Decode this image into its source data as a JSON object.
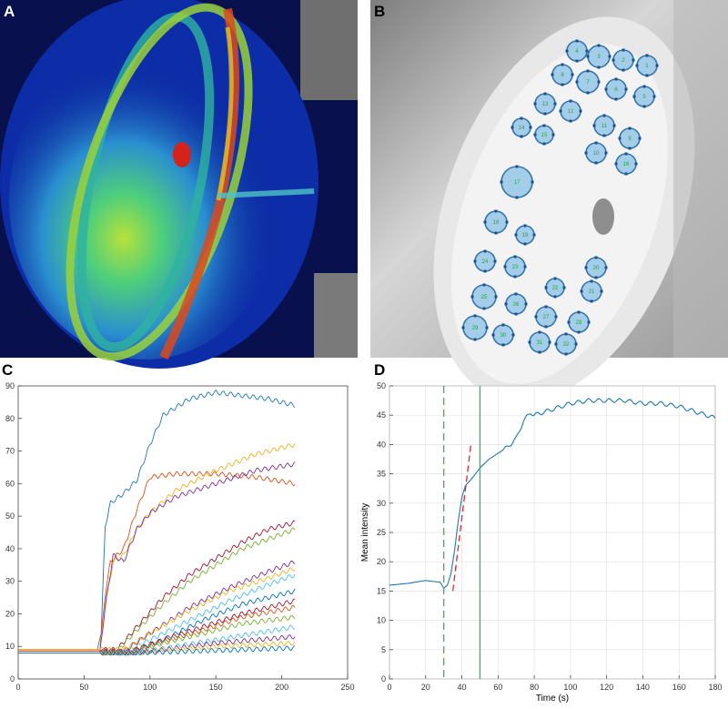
{
  "panels": {
    "a": "A",
    "b": "B",
    "c": "C",
    "d": "D"
  },
  "colors": {
    "panel_d_trace": "#1f77b4",
    "dashed_marker": "#3cb34a",
    "solid_marker": "#3cb34a",
    "fit_line": "#e3242b",
    "roi_fill": "#9fcbe8",
    "roi_stroke": "#2a6fa8",
    "roi_label": "#1faa3c"
  },
  "roi_labels": [
    "1",
    "2",
    "3",
    "4",
    "5",
    "6",
    "7",
    "8",
    "9",
    "10",
    "11",
    "12",
    "13",
    "14",
    "15",
    "16",
    "17",
    "18",
    "19",
    "20",
    "21",
    "22",
    "23",
    "24",
    "25",
    "26",
    "27",
    "28",
    "29",
    "30",
    "31",
    "32"
  ],
  "chart_data": [
    {
      "panel": "C",
      "type": "line",
      "title": "",
      "xlabel": "",
      "ylabel": "",
      "xlim": [
        0,
        250
      ],
      "ylim": [
        0,
        90
      ],
      "xticks": [
        0,
        50,
        100,
        150,
        200,
        250
      ],
      "yticks": [
        0,
        10,
        20,
        30,
        40,
        50,
        60,
        70,
        80,
        90
      ],
      "grid": false,
      "series": [
        {
          "color": "#1f77b4",
          "values": [
            [
              0,
              9
            ],
            [
              60,
              9
            ],
            [
              63,
              14
            ],
            [
              66,
              47
            ],
            [
              70,
              54
            ],
            [
              80,
              57
            ],
            [
              90,
              61
            ],
            [
              100,
              72
            ],
            [
              110,
              81
            ],
            [
              130,
              86
            ],
            [
              150,
              88
            ],
            [
              170,
              87
            ],
            [
              190,
              86
            ],
            [
              210,
              84
            ]
          ]
        },
        {
          "color": "#d95319",
          "values": [
            [
              0,
              9
            ],
            [
              62,
              9
            ],
            [
              66,
              26
            ],
            [
              70,
              36
            ],
            [
              80,
              40
            ],
            [
              90,
              52
            ],
            [
              100,
              62
            ],
            [
              120,
              63
            ],
            [
              150,
              63
            ],
            [
              180,
              62
            ],
            [
              210,
              60
            ]
          ]
        },
        {
          "color": "#edb120",
          "values": [
            [
              0,
              9
            ],
            [
              62,
              9
            ],
            [
              66,
              22
            ],
            [
              72,
              36
            ],
            [
              80,
              38
            ],
            [
              90,
              46
            ],
            [
              100,
              51
            ],
            [
              120,
              58
            ],
            [
              150,
              64
            ],
            [
              180,
              69
            ],
            [
              210,
              72
            ]
          ]
        },
        {
          "color": "#7e2f8e",
          "values": [
            [
              0,
              8.5
            ],
            [
              62,
              8.5
            ],
            [
              66,
              22
            ],
            [
              72,
              38
            ],
            [
              80,
              36
            ],
            [
              90,
              46
            ],
            [
              100,
              51
            ],
            [
              120,
              56
            ],
            [
              150,
              60
            ],
            [
              180,
              64
            ],
            [
              210,
              66
            ]
          ]
        },
        {
          "color": "#a2142f",
          "values": [
            [
              0,
              9
            ],
            [
              75,
              9
            ],
            [
              90,
              16
            ],
            [
              110,
              25
            ],
            [
              130,
              32
            ],
            [
              150,
              37
            ],
            [
              170,
              42
            ],
            [
              190,
              46
            ],
            [
              210,
              48
            ]
          ]
        },
        {
          "color": "#77ac30",
          "values": [
            [
              0,
              8.5
            ],
            [
              75,
              8.5
            ],
            [
              90,
              15
            ],
            [
              110,
              23
            ],
            [
              130,
              30
            ],
            [
              150,
              35
            ],
            [
              170,
              40
            ],
            [
              190,
              43
            ],
            [
              210,
              46
            ]
          ]
        },
        {
          "color": "#7e2f8e",
          "values": [
            [
              0,
              8.5
            ],
            [
              80,
              8.5
            ],
            [
              100,
              14
            ],
            [
              130,
              22
            ],
            [
              160,
              28
            ],
            [
              190,
              33
            ],
            [
              210,
              36
            ]
          ]
        },
        {
          "color": "#edb120",
          "values": [
            [
              0,
              9
            ],
            [
              80,
              9
            ],
            [
              100,
              14
            ],
            [
              130,
              21
            ],
            [
              160,
              27
            ],
            [
              190,
              31
            ],
            [
              210,
              34
            ]
          ]
        },
        {
          "color": "#4dbeee",
          "values": [
            [
              0,
              8
            ],
            [
              80,
              8
            ],
            [
              100,
              12
            ],
            [
              130,
              18
            ],
            [
              160,
              24
            ],
            [
              190,
              29
            ],
            [
              210,
              32
            ]
          ]
        },
        {
          "color": "#0072bd",
          "values": [
            [
              0,
              8
            ],
            [
              85,
              8
            ],
            [
              110,
              12
            ],
            [
              140,
              18
            ],
            [
              170,
              23
            ],
            [
              210,
              27
            ]
          ]
        },
        {
          "color": "#a2142f",
          "values": [
            [
              0,
              8.5
            ],
            [
              85,
              8.5
            ],
            [
              110,
              12
            ],
            [
              140,
              16
            ],
            [
              170,
              20
            ],
            [
              210,
              24
            ]
          ]
        },
        {
          "color": "#d95319",
          "values": [
            [
              0,
              8.5
            ],
            [
              85,
              8.5
            ],
            [
              110,
              11.5
            ],
            [
              140,
              15
            ],
            [
              170,
              19
            ],
            [
              210,
              22
            ]
          ]
        },
        {
          "color": "#77ac30",
          "values": [
            [
              0,
              8
            ],
            [
              85,
              8
            ],
            [
              110,
              11
            ],
            [
              140,
              14
            ],
            [
              170,
              17
            ],
            [
              210,
              19
            ]
          ]
        },
        {
          "color": "#4dbeee",
          "values": [
            [
              0,
              8
            ],
            [
              90,
              8
            ],
            [
              120,
              10
            ],
            [
              150,
              12
            ],
            [
              180,
              14
            ],
            [
              210,
              16
            ]
          ]
        },
        {
          "color": "#7e2f8e",
          "values": [
            [
              0,
              8
            ],
            [
              90,
              8
            ],
            [
              120,
              9.5
            ],
            [
              150,
              11
            ],
            [
              180,
              12
            ],
            [
              210,
              13
            ]
          ]
        },
        {
          "color": "#edb120",
          "values": [
            [
              0,
              8
            ],
            [
              90,
              8
            ],
            [
              120,
              9
            ],
            [
              150,
              10
            ],
            [
              180,
              10.5
            ],
            [
              210,
              11
            ]
          ]
        },
        {
          "color": "#0072bd",
          "values": [
            [
              0,
              8
            ],
            [
              90,
              8
            ],
            [
              130,
              8.5
            ],
            [
              170,
              9
            ],
            [
              210,
              9.5
            ]
          ]
        }
      ]
    },
    {
      "panel": "D",
      "type": "line",
      "title": "",
      "xlabel": "Time (s)",
      "ylabel": "Mean intensity",
      "xlim": [
        0,
        180
      ],
      "ylim": [
        0,
        50
      ],
      "xticks": [
        0,
        20,
        40,
        60,
        80,
        100,
        120,
        140,
        160,
        180
      ],
      "yticks": [
        0,
        5,
        10,
        15,
        20,
        25,
        30,
        35,
        40,
        45,
        50
      ],
      "grid": true,
      "dashed_vline_x": 30,
      "solid_vline_x": 50,
      "fit_line": [
        [
          35,
          15
        ],
        [
          45,
          40
        ]
      ],
      "series": [
        {
          "values": [
            [
              0,
              16
            ],
            [
              10,
              16.3
            ],
            [
              20,
              16.8
            ],
            [
              28,
              16.5
            ],
            [
              30,
              15.5
            ],
            [
              32,
              16
            ],
            [
              34,
              18
            ],
            [
              36,
              22
            ],
            [
              38,
              27
            ],
            [
              40,
              31
            ],
            [
              42,
              33
            ],
            [
              45,
              34
            ],
            [
              50,
              36
            ],
            [
              55,
              37.5
            ],
            [
              60,
              38.5
            ],
            [
              65,
              39.5
            ],
            [
              70,
              41
            ],
            [
              74,
              44
            ],
            [
              78,
              45.5
            ],
            [
              80,
              45
            ],
            [
              85,
              45.5
            ],
            [
              90,
              46
            ],
            [
              100,
              47
            ],
            [
              110,
              47.5
            ],
            [
              120,
              47.5
            ],
            [
              130,
              47.5
            ],
            [
              140,
              47
            ],
            [
              150,
              47
            ],
            [
              160,
              46.5
            ],
            [
              170,
              45.5
            ],
            [
              180,
              44.5
            ]
          ]
        }
      ]
    }
  ]
}
